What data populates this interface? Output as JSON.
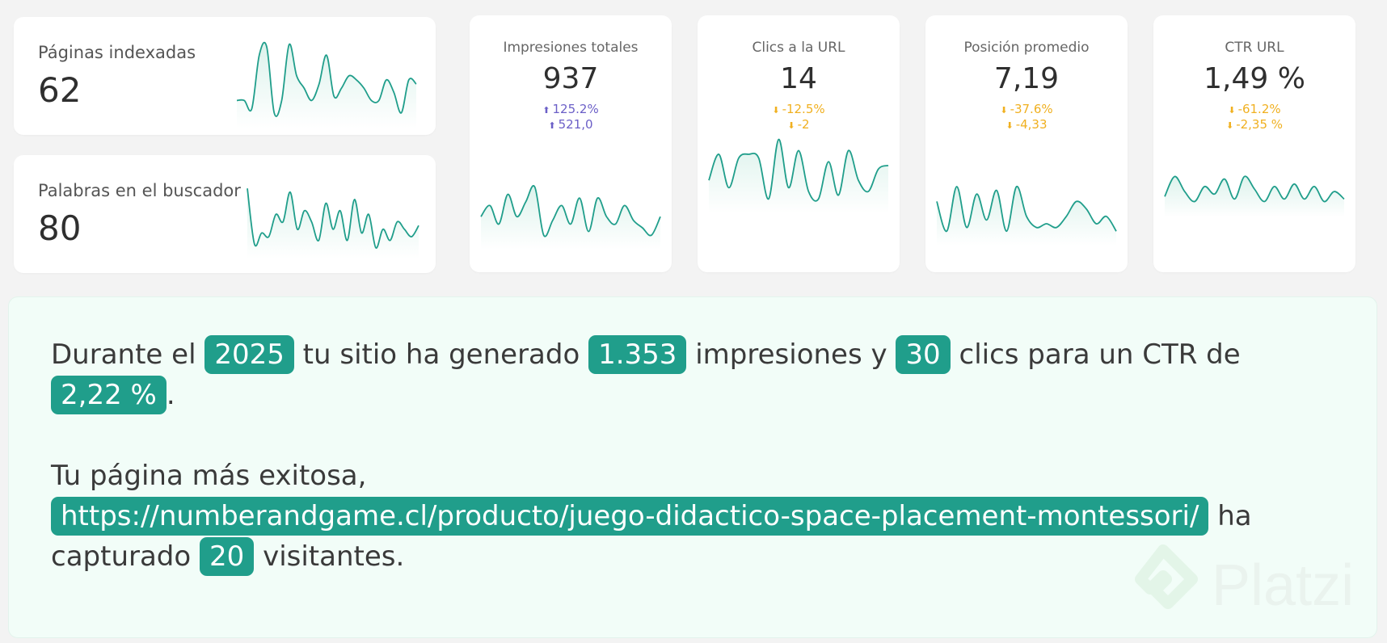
{
  "colors": {
    "line": "#209e8b",
    "fill": "#d9f1ea",
    "up": "#6b5fc7",
    "down": "#f0b020",
    "pill": "#209e8b"
  },
  "cards": {
    "indexed_pages": {
      "label": "Páginas indexadas",
      "value": "62"
    },
    "search_words": {
      "label": "Palabras en el buscador",
      "value": "80"
    },
    "impressions": {
      "label": "Impresiones totales",
      "value": "937",
      "delta_pct": "125.2%",
      "delta_abs": "521,0",
      "direction": "up"
    },
    "clicks": {
      "label": "Clics a la URL",
      "value": "14",
      "delta_pct": "-12.5%",
      "delta_abs": "-2",
      "direction": "down"
    },
    "position": {
      "label": "Posición promedio",
      "value": "7,19",
      "delta_pct": "-37.6%",
      "delta_abs": "-4,33",
      "direction": "down"
    },
    "ctr": {
      "label": "CTR URL",
      "value": "1,49 %",
      "delta_pct": "-61.2%",
      "delta_abs": "-2,35 %",
      "direction": "down"
    }
  },
  "summary": {
    "s1_prefix": "Durante el",
    "year": "2025",
    "s1_mid1": "tu sitio ha generado",
    "impressions": "1.353",
    "s1_mid2": "impresiones y",
    "clicks": "30",
    "s1_mid3": "clics para un CTR de",
    "ctr": "2,22 %",
    "s1_end": ".",
    "s2_prefix": "Tu página más exitosa,",
    "top_url": "https://numberandgame.cl/producto/juego-didactico-space-placement-montessori/",
    "s2_mid": "ha capturado",
    "visitors": "20",
    "s2_end": "visitantes."
  },
  "watermark": {
    "text": "Platzi"
  },
  "sparklines": {
    "indexed_pages": [
      0.3,
      0.3,
      0.2,
      0.85,
      0.95,
      0.15,
      0.3,
      0.98,
      0.6,
      0.45,
      0.3,
      0.5,
      0.85,
      0.35,
      0.45,
      0.6,
      0.55,
      0.45,
      0.3,
      0.3,
      0.55,
      0.4,
      0.15,
      0.55,
      0.5
    ],
    "search_words": [
      0.9,
      0.15,
      0.3,
      0.25,
      0.55,
      0.45,
      0.85,
      0.35,
      0.6,
      0.45,
      0.2,
      0.7,
      0.35,
      0.6,
      0.2,
      0.75,
      0.3,
      0.55,
      0.1,
      0.35,
      0.2,
      0.45,
      0.35,
      0.25,
      0.4
    ],
    "impressions": [
      0.4,
      0.55,
      0.3,
      0.7,
      0.4,
      0.6,
      0.8,
      0.15,
      0.35,
      0.55,
      0.3,
      0.65,
      0.2,
      0.65,
      0.4,
      0.3,
      0.55,
      0.35,
      0.25,
      0.15,
      0.4
    ],
    "clicks": [
      0.4,
      0.75,
      0.3,
      0.7,
      0.75,
      0.7,
      0.15,
      0.95,
      0.3,
      0.8,
      0.25,
      0.15,
      0.65,
      0.2,
      0.8,
      0.4,
      0.25,
      0.55,
      0.6
    ],
    "position": [
      0.55,
      0.15,
      0.75,
      0.2,
      0.65,
      0.3,
      0.7,
      0.15,
      0.75,
      0.35,
      0.2,
      0.25,
      0.2,
      0.35,
      0.55,
      0.45,
      0.25,
      0.35,
      0.15
    ],
    "ctr": [
      0.35,
      0.75,
      0.45,
      0.25,
      0.55,
      0.4,
      0.7,
      0.3,
      0.75,
      0.5,
      0.25,
      0.55,
      0.3,
      0.6,
      0.3,
      0.55,
      0.25,
      0.45,
      0.3
    ]
  }
}
